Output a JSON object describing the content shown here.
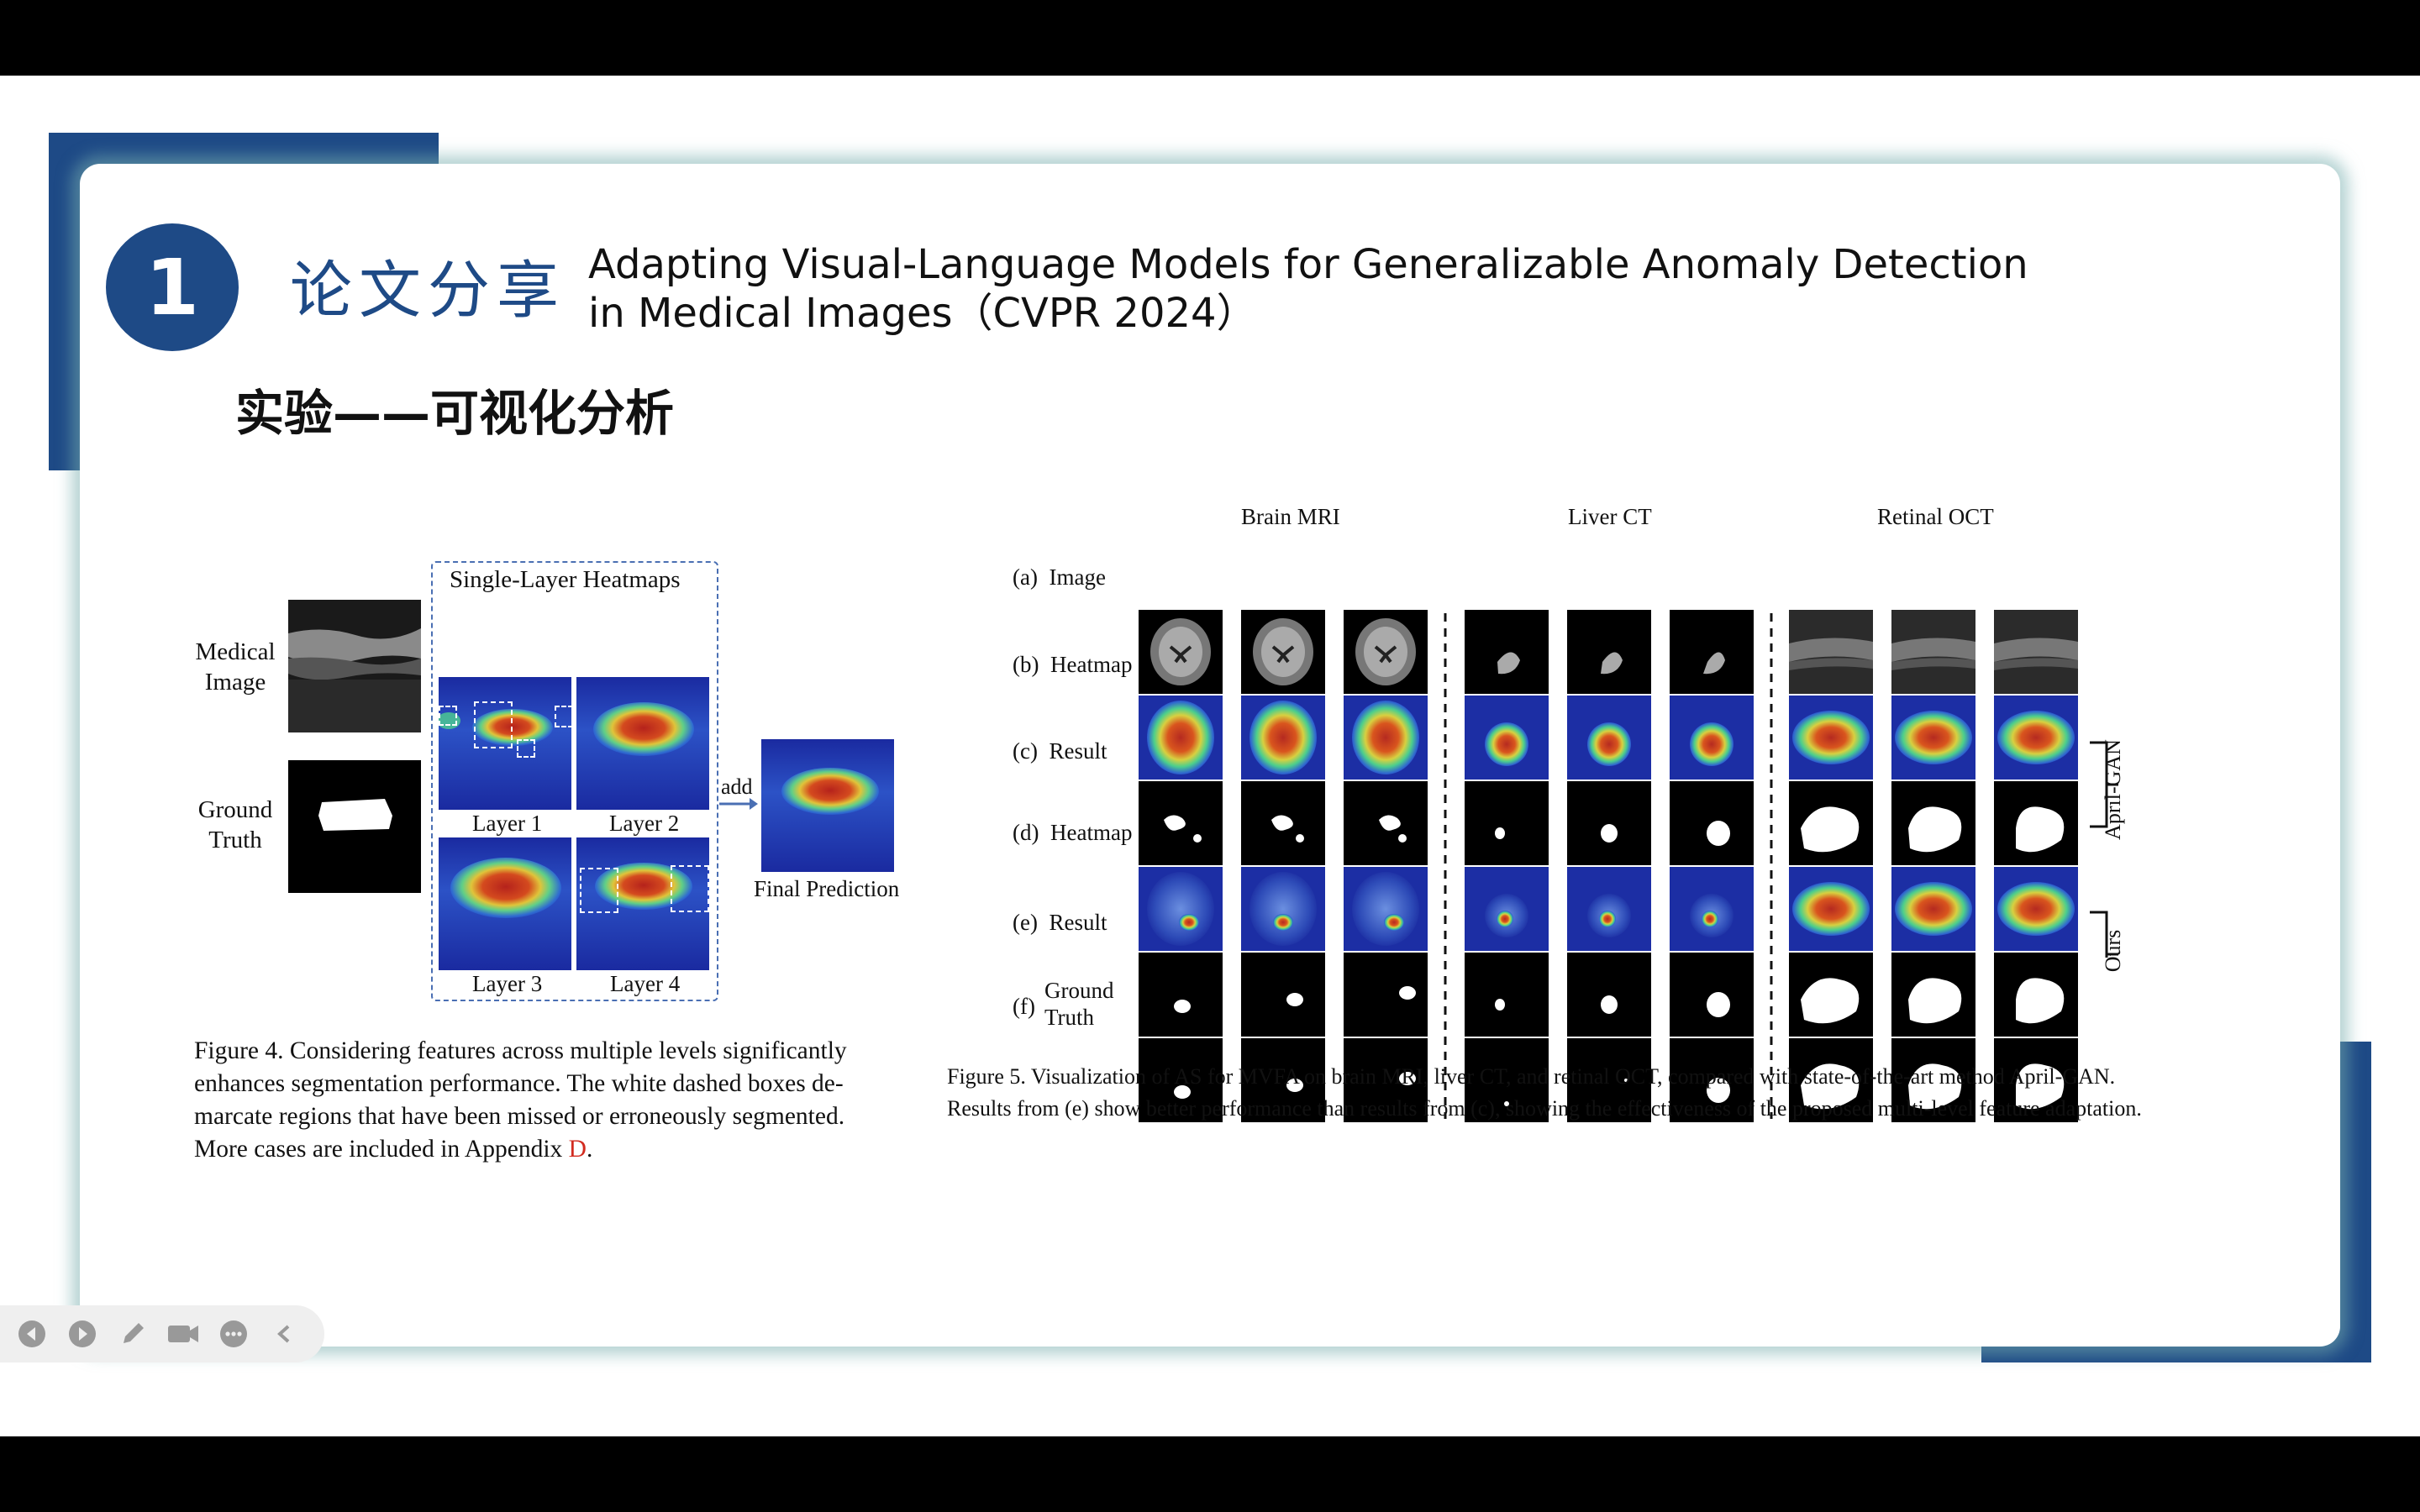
{
  "slide": {
    "number": "1",
    "section_cn": "论文分享",
    "title_line1": "Adapting Visual-Language Models for  Generalizable Anomaly Detection",
    "title_line2": "in Medical Images（CVPR 2024）",
    "subtitle": "实验——可视化分析"
  },
  "fig4": {
    "frame_title": "Single-Layer Heatmaps",
    "row_label_1a": "Medical",
    "row_label_1b": "Image",
    "row_label_2a": "Ground",
    "row_label_2b": "Truth",
    "layer1": "Layer 1",
    "layer2": "Layer 2",
    "layer3": "Layer 3",
    "layer4": "Layer 4",
    "add": "add",
    "final": "Final Prediction",
    "caption_lines": [
      "Figure 4. Considering features across multiple levels significantly",
      "enhances segmentation performance. The white dashed boxes de-",
      "marcate regions that have been missed or erroneously segmented."
    ],
    "caption_last": "More cases are included in Appendix ",
    "caption_ref": "D",
    "caption_end": "."
  },
  "fig5": {
    "groups": [
      "Brain MRI",
      "Liver CT",
      "Retinal OCT"
    ],
    "rows": [
      {
        "letter": "(a)",
        "label": "Image"
      },
      {
        "letter": "(b)",
        "label": "Heatmap"
      },
      {
        "letter": "(c)",
        "label": "Result"
      },
      {
        "letter": "(d)",
        "label": "Heatmap"
      },
      {
        "letter": "(e)",
        "label": "Result"
      },
      {
        "letter": "(f)",
        "label1": "Ground",
        "label2": "Truth"
      }
    ],
    "bracket_1": "April-GAN",
    "bracket_2": "Ours",
    "caption_line1": "Figure 5.  Visualization of AS for MVFA on brain MRI, liver CT, and retinal OCT, compared with state-of-the-art method April-GAN.",
    "caption_line2": "Results from (e) show better performance than results from (c), showing the effectiveness of the proposed multi-level feature adaptation."
  },
  "toolbar": {
    "icons": [
      "prev-icon",
      "next-icon",
      "pen-icon",
      "camera-icon",
      "more-icon",
      "collapse-icon"
    ]
  },
  "colors": {
    "accent": "#1e4a86",
    "heat_red": "#c8281e",
    "heat_blue": "#1a2fa8"
  }
}
